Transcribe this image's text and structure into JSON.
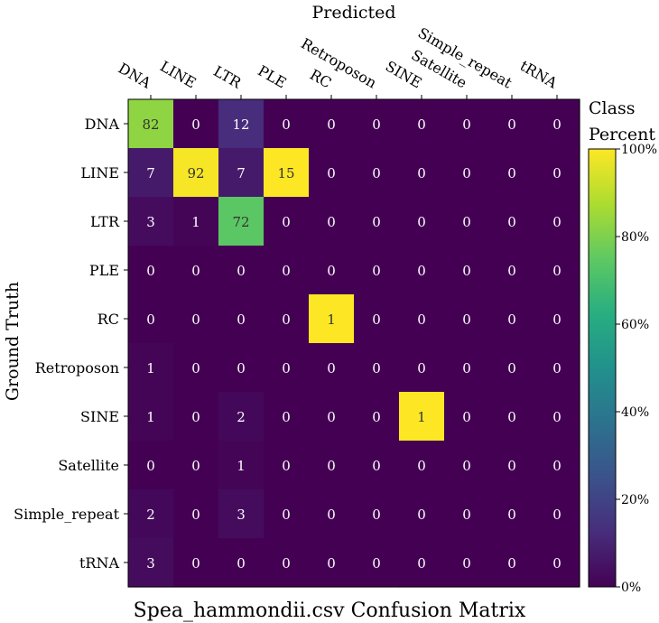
{
  "chart_data": {
    "type": "heatmap",
    "title": "Spea_hammondii.csv Confusion Matrix",
    "xlabel": "Predicted",
    "ylabel": "Ground Truth",
    "x_categories": [
      "DNA",
      "LINE",
      "LTR",
      "PLE",
      "RC",
      "Retroposon",
      "SINE",
      "Satellite",
      "Simple_repeat",
      "tRNA"
    ],
    "y_categories": [
      "DNA",
      "LINE",
      "LTR",
      "PLE",
      "RC",
      "Retroposon",
      "SINE",
      "Satellite",
      "Simple_repeat",
      "tRNA"
    ],
    "counts": [
      [
        82,
        0,
        12,
        0,
        0,
        0,
        0,
        0,
        0,
        0
      ],
      [
        7,
        92,
        7,
        15,
        0,
        0,
        0,
        0,
        0,
        0
      ],
      [
        3,
        1,
        72,
        0,
        0,
        0,
        0,
        0,
        0,
        0
      ],
      [
        0,
        0,
        0,
        0,
        0,
        0,
        0,
        0,
        0,
        0
      ],
      [
        0,
        0,
        0,
        0,
        1,
        0,
        0,
        0,
        0,
        0
      ],
      [
        1,
        0,
        0,
        0,
        0,
        0,
        0,
        0,
        0,
        0
      ],
      [
        1,
        0,
        2,
        0,
        0,
        0,
        1,
        0,
        0,
        0
      ],
      [
        0,
        0,
        1,
        0,
        0,
        0,
        0,
        0,
        0,
        0
      ],
      [
        2,
        0,
        3,
        0,
        0,
        0,
        0,
        0,
        0,
        0
      ],
      [
        3,
        0,
        0,
        0,
        0,
        0,
        0,
        0,
        0,
        0
      ]
    ],
    "colormap": "viridis",
    "color_metric": "column percent",
    "colorbar": {
      "title_lines": [
        "Class",
        "Percent"
      ],
      "range": [
        0,
        100
      ],
      "ticks": [
        0,
        20,
        40,
        60,
        80,
        100
      ],
      "tick_labels": [
        "0%",
        "20%",
        "40%",
        "60%",
        "80%",
        "100%"
      ]
    },
    "grid": false
  }
}
